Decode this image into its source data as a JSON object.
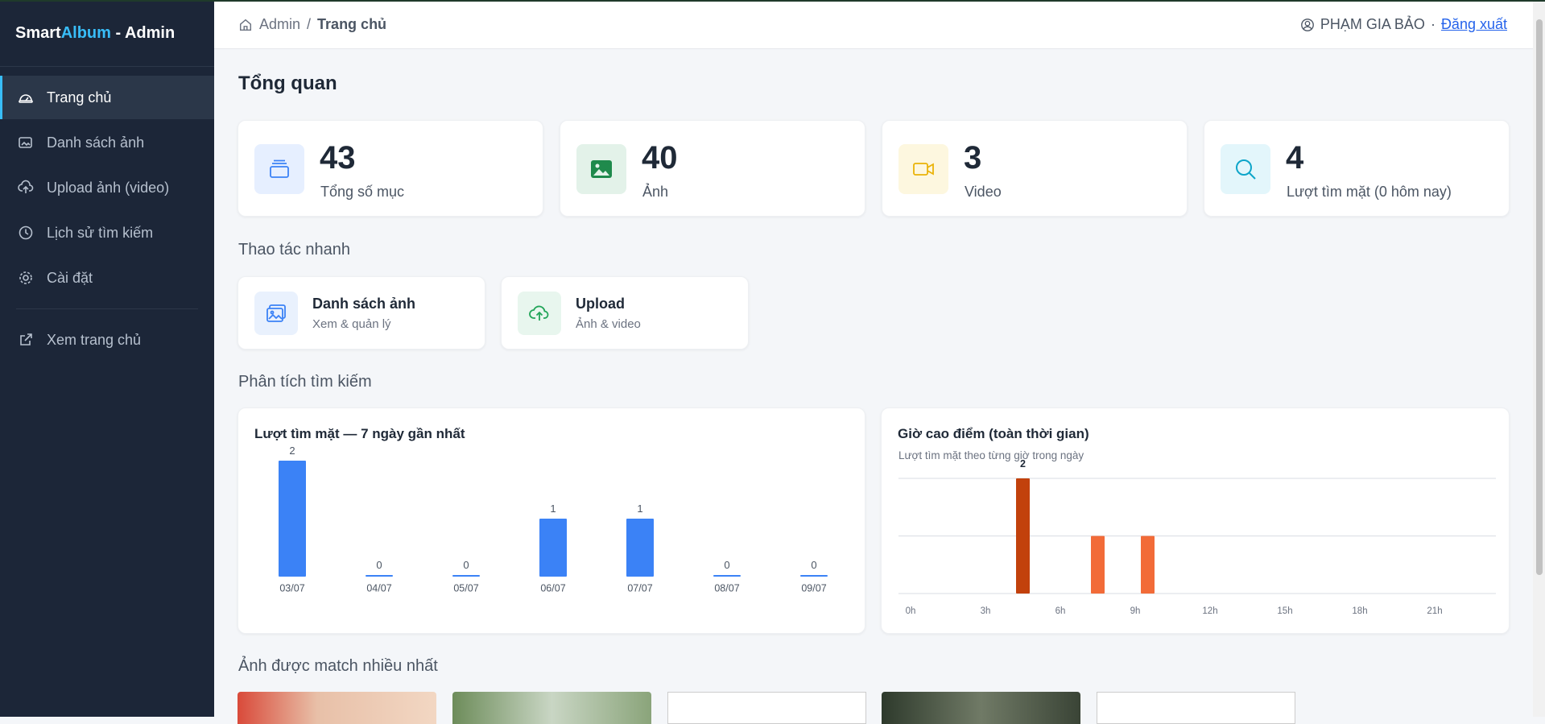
{
  "sidebar": {
    "brand": {
      "part1": "Smart",
      "part2": "Album",
      "part3": "- Admin"
    },
    "nav": [
      "Trang chủ",
      "Danh sách ảnh",
      "Upload ảnh (video)",
      "Lịch sử tìm kiếm",
      "Cài đặt"
    ],
    "external": "Xem trang chủ"
  },
  "topbar": {
    "breadcrumb": {
      "root": "Admin",
      "separator": "/",
      "current": "Trang chủ"
    },
    "user": "PHẠM GIA BẢO",
    "separator": "·",
    "logout": "Đăng xuất"
  },
  "page_title": "Tổng quan",
  "stats": [
    {
      "value": 43,
      "label": "Tổng số mục"
    },
    {
      "value": 40,
      "label": "Ảnh"
    },
    {
      "value": 3,
      "label": "Video"
    },
    {
      "value": 4,
      "label": "Lượt tìm mặt (0 hôm nay)"
    }
  ],
  "quick_actions": {
    "title": "Thao tác nhanh",
    "items": [
      {
        "title": "Danh sách ảnh",
        "subtitle": "Xem & quản lý"
      },
      {
        "title": "Upload",
        "subtitle": "Ảnh & video"
      }
    ]
  },
  "analytics": {
    "title": "Phân tích tìm kiếm",
    "daily": {
      "type": "bar",
      "title": "Lượt tìm mặt — 7 ngày gần nhất",
      "categories": [
        "03/07",
        "04/07",
        "05/07",
        "06/07",
        "07/07",
        "08/07",
        "09/07"
      ],
      "values": [
        2,
        0,
        0,
        1,
        1,
        0,
        0
      ],
      "color": "#3b82f6"
    },
    "hourly": {
      "type": "bar",
      "title": "Giờ cao điểm (toàn thời gian)",
      "subtitle": "Lượt tìm mặt theo từng giờ trong ngày",
      "categories": [
        "0h",
        null,
        null,
        "3h",
        null,
        null,
        "6h",
        null,
        null,
        "9h",
        null,
        null,
        "12h",
        null,
        null,
        "15h",
        null,
        null,
        "18h",
        null,
        null,
        "21h",
        null,
        null
      ],
      "values": [
        0,
        0,
        0,
        0,
        2,
        0,
        0,
        1,
        0,
        1,
        0,
        0,
        0,
        0,
        0,
        0,
        0,
        0,
        0,
        0,
        0,
        0,
        0,
        0
      ],
      "color": "#f26b38",
      "peak_color": "#c2410c",
      "ylim": [
        0,
        2
      ],
      "yticks": [
        0,
        1,
        2
      ],
      "grid": true
    }
  },
  "top_matched": {
    "title": "Ảnh được match nhiều nhất"
  }
}
